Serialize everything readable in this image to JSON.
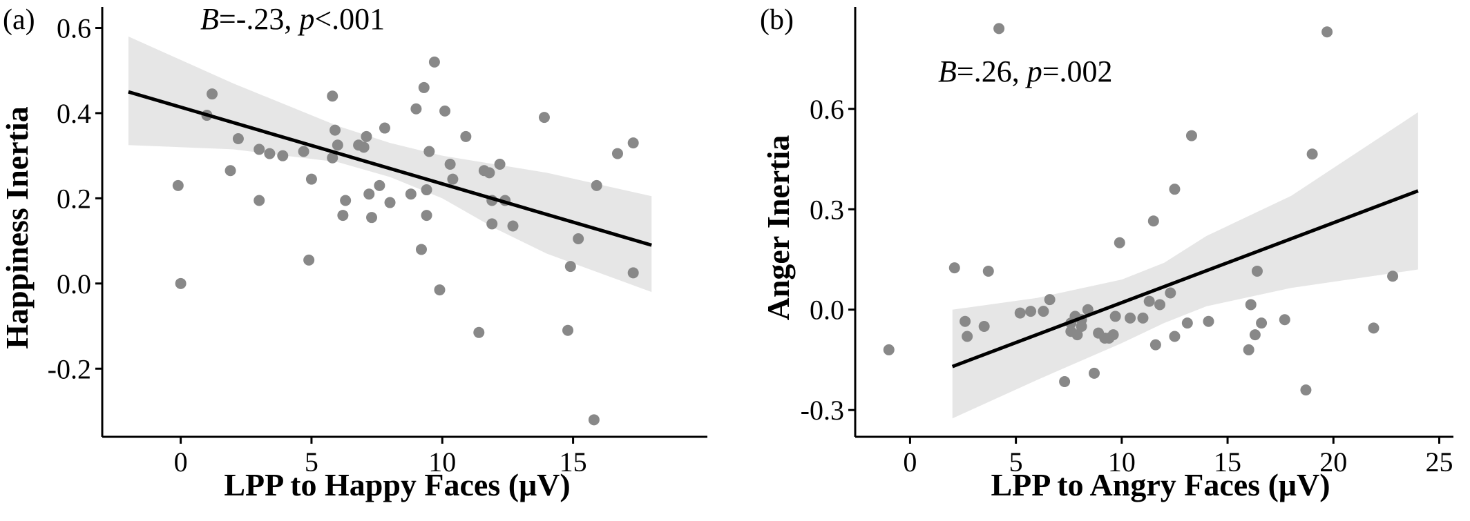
{
  "colors": {
    "points": "#888888",
    "band": "#e6e6e6",
    "line": "#000000",
    "axes": "#000000"
  },
  "chart_data": [
    {
      "type": "scatter",
      "panel_label": "(a)",
      "annotation_parts": [
        {
          "text": "B",
          "italic": true
        },
        {
          "text": "=-.23, ",
          "italic": false
        },
        {
          "text": "p",
          "italic": true
        },
        {
          "text": "<.001",
          "italic": false
        }
      ],
      "xlabel": "LPP to Happy Faces (μV)",
      "ylabel": "Happiness Inertia",
      "xlim": [
        -3,
        19.5
      ],
      "ylim": [
        -0.36,
        0.63
      ],
      "xticks": [
        0,
        5,
        10,
        15
      ],
      "xtick_labels": [
        "0",
        "5",
        "10",
        "15"
      ],
      "yticks": [
        -0.2,
        0.0,
        0.2,
        0.4,
        0.6
      ],
      "ytick_labels": [
        "-0.2",
        "0.0",
        "0.2",
        "0.4",
        "0.6"
      ],
      "grid": false,
      "fit": {
        "x": [
          -2,
          18
        ],
        "y": [
          0.45,
          0.09
        ]
      },
      "ci_band": {
        "x": [
          -2,
          2,
          6,
          8,
          10,
          12,
          14,
          18
        ],
        "upper": [
          0.58,
          0.47,
          0.37,
          0.33,
          0.3,
          0.28,
          0.26,
          0.205
        ],
        "lower": [
          0.325,
          0.315,
          0.285,
          0.25,
          0.2,
          0.13,
          0.07,
          -0.02
        ]
      },
      "points": [
        [
          -0.1,
          0.23
        ],
        [
          0.0,
          0.0
        ],
        [
          1.0,
          0.395
        ],
        [
          1.2,
          0.445
        ],
        [
          1.9,
          0.265
        ],
        [
          2.2,
          0.34
        ],
        [
          3.0,
          0.315
        ],
        [
          3.0,
          0.195
        ],
        [
          3.4,
          0.305
        ],
        [
          3.9,
          0.3
        ],
        [
          4.7,
          0.31
        ],
        [
          4.9,
          0.055
        ],
        [
          5.0,
          0.245
        ],
        [
          5.8,
          0.44
        ],
        [
          5.8,
          0.295
        ],
        [
          5.9,
          0.36
        ],
        [
          6.0,
          0.325
        ],
        [
          6.2,
          0.16
        ],
        [
          6.3,
          0.195
        ],
        [
          6.8,
          0.325
        ],
        [
          7.0,
          0.32
        ],
        [
          7.1,
          0.345
        ],
        [
          7.2,
          0.21
        ],
        [
          7.3,
          0.155
        ],
        [
          7.6,
          0.23
        ],
        [
          7.8,
          0.365
        ],
        [
          8.0,
          0.19
        ],
        [
          8.8,
          0.21
        ],
        [
          9.0,
          0.41
        ],
        [
          9.2,
          0.08
        ],
        [
          9.3,
          0.46
        ],
        [
          9.4,
          0.16
        ],
        [
          9.4,
          0.22
        ],
        [
          9.5,
          0.31
        ],
        [
          9.7,
          0.52
        ],
        [
          9.9,
          -0.015
        ],
        [
          10.1,
          0.405
        ],
        [
          10.3,
          0.28
        ],
        [
          10.4,
          0.245
        ],
        [
          10.9,
          0.345
        ],
        [
          11.4,
          -0.115
        ],
        [
          11.6,
          0.265
        ],
        [
          11.8,
          0.26
        ],
        [
          11.9,
          0.195
        ],
        [
          11.9,
          0.14
        ],
        [
          12.2,
          0.28
        ],
        [
          12.4,
          0.195
        ],
        [
          12.7,
          0.135
        ],
        [
          13.9,
          0.39
        ],
        [
          14.8,
          -0.11
        ],
        [
          14.9,
          0.04
        ],
        [
          15.2,
          0.105
        ],
        [
          15.8,
          -0.32
        ],
        [
          15.9,
          0.23
        ],
        [
          16.7,
          0.305
        ],
        [
          17.3,
          0.33
        ],
        [
          17.3,
          0.025
        ]
      ]
    },
    {
      "type": "scatter",
      "panel_label": "(b)",
      "annotation_parts": [
        {
          "text": "B",
          "italic": true
        },
        {
          "text": "=.26, ",
          "italic": false
        },
        {
          "text": "p",
          "italic": true
        },
        {
          "text": "=.002",
          "italic": false
        }
      ],
      "xlabel": "LPP to Angry Faces (μV)",
      "ylabel": "Anger Inertia",
      "xlim": [
        -2.2,
        25.8
      ],
      "ylim": [
        -0.38,
        0.88
      ],
      "xticks": [
        0,
        5,
        10,
        15,
        20,
        25
      ],
      "xtick_labels": [
        "0",
        "5",
        "10",
        "15",
        "20",
        "25"
      ],
      "yticks": [
        -0.3,
        0.0,
        0.3,
        0.6
      ],
      "ytick_labels": [
        "-0.3",
        "0.0",
        "0.3",
        "0.6"
      ],
      "grid": false,
      "fit": {
        "x": [
          2,
          24
        ],
        "y": [
          -0.17,
          0.355
        ]
      },
      "ci_band": {
        "x": [
          2,
          6,
          10,
          12,
          14,
          18,
          24
        ],
        "upper": [
          0.0,
          0.035,
          0.09,
          0.14,
          0.22,
          0.34,
          0.59
        ],
        "lower": [
          -0.325,
          -0.21,
          -0.1,
          -0.04,
          0.01,
          0.065,
          0.12
        ]
      },
      "points": [
        [
          -1.0,
          -0.12
        ],
        [
          2.1,
          0.125
        ],
        [
          2.6,
          -0.035
        ],
        [
          2.7,
          -0.08
        ],
        [
          3.5,
          -0.05
        ],
        [
          3.7,
          0.115
        ],
        [
          4.2,
          0.84
        ],
        [
          5.2,
          -0.01
        ],
        [
          5.7,
          -0.005
        ],
        [
          6.3,
          -0.005
        ],
        [
          6.6,
          0.03
        ],
        [
          7.3,
          -0.215
        ],
        [
          7.6,
          -0.04
        ],
        [
          7.6,
          -0.065
        ],
        [
          7.8,
          -0.02
        ],
        [
          7.9,
          -0.075
        ],
        [
          8.1,
          -0.03
        ],
        [
          8.1,
          -0.05
        ],
        [
          8.4,
          0.0
        ],
        [
          8.7,
          -0.19
        ],
        [
          8.9,
          -0.07
        ],
        [
          9.2,
          -0.085
        ],
        [
          9.4,
          -0.085
        ],
        [
          9.6,
          -0.075
        ],
        [
          9.7,
          -0.02
        ],
        [
          9.9,
          0.2
        ],
        [
          10.4,
          -0.025
        ],
        [
          11.0,
          -0.025
        ],
        [
          11.3,
          0.025
        ],
        [
          11.5,
          0.265
        ],
        [
          11.6,
          -0.105
        ],
        [
          11.8,
          0.015
        ],
        [
          12.3,
          0.05
        ],
        [
          12.5,
          0.36
        ],
        [
          12.5,
          -0.08
        ],
        [
          13.1,
          -0.04
        ],
        [
          13.3,
          0.52
        ],
        [
          14.1,
          -0.035
        ],
        [
          16.0,
          -0.12
        ],
        [
          16.1,
          0.015
        ],
        [
          16.3,
          -0.075
        ],
        [
          16.4,
          0.115
        ],
        [
          16.6,
          -0.04
        ],
        [
          17.7,
          -0.03
        ],
        [
          18.7,
          -0.24
        ],
        [
          19.0,
          0.465
        ],
        [
          19.7,
          0.83
        ],
        [
          21.9,
          -0.055
        ],
        [
          22.8,
          0.1
        ]
      ]
    }
  ]
}
